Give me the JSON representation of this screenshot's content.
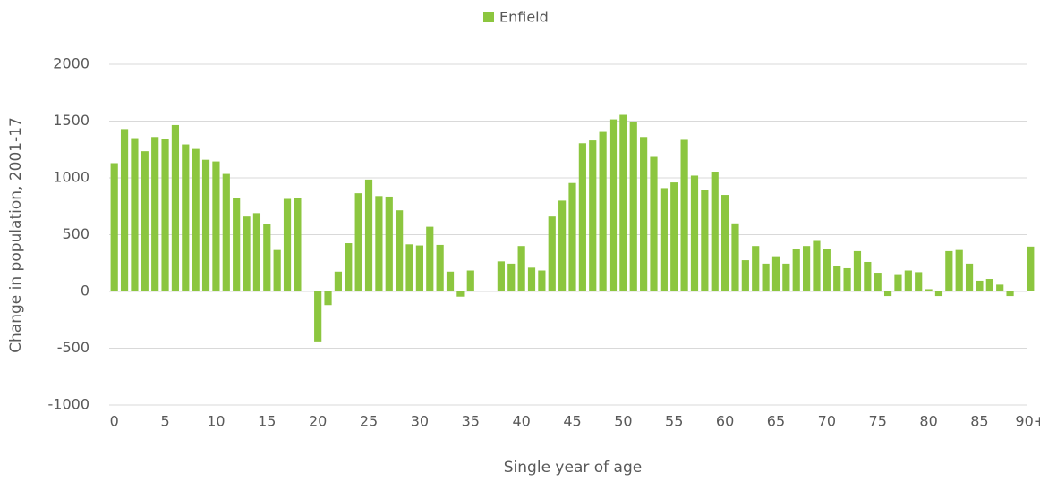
{
  "chart_data": {
    "type": "bar",
    "legend": "Enfield",
    "color": "#8cc63f",
    "x_label": "Single year of age",
    "y_label": "Change in population, 2001-17",
    "categories": [
      "0",
      null,
      null,
      null,
      null,
      "5",
      null,
      null,
      null,
      null,
      "10",
      null,
      null,
      null,
      null,
      "15",
      null,
      null,
      null,
      null,
      "20",
      null,
      null,
      null,
      null,
      "25",
      null,
      null,
      null,
      null,
      "30",
      null,
      null,
      null,
      null,
      "35",
      null,
      null,
      null,
      null,
      "40",
      null,
      null,
      null,
      null,
      "45",
      null,
      null,
      null,
      null,
      "50",
      null,
      null,
      null,
      null,
      "55",
      null,
      null,
      null,
      null,
      "60",
      null,
      null,
      null,
      null,
      "65",
      null,
      null,
      null,
      null,
      "70",
      null,
      null,
      null,
      null,
      "75",
      null,
      null,
      null,
      null,
      "80",
      null,
      null,
      null,
      null,
      "85",
      null,
      null,
      null,
      null,
      "90+"
    ],
    "values": [
      1130,
      1430,
      1350,
      1235,
      1360,
      1340,
      1465,
      1295,
      1255,
      1160,
      1145,
      1035,
      820,
      660,
      690,
      595,
      365,
      815,
      825,
      0,
      -440,
      -120,
      175,
      425,
      865,
      985,
      840,
      835,
      715,
      415,
      405,
      570,
      410,
      175,
      -45,
      185,
      0,
      0,
      265,
      245,
      400,
      210,
      185,
      660,
      800,
      955,
      1305,
      1330,
      1405,
      1515,
      1555,
      1495,
      1360,
      1185,
      910,
      960,
      1335,
      1020,
      890,
      1055,
      850,
      600,
      275,
      400,
      245,
      310,
      245,
      370,
      400,
      445,
      375,
      225,
      205,
      355,
      260,
      165,
      -40,
      145,
      185,
      170,
      20,
      -40,
      355,
      365,
      245,
      95,
      110,
      60,
      -40,
      0,
      395
    ],
    "ylim": [
      -1000,
      2000
    ],
    "yticks": [
      -1000,
      -500,
      0,
      500,
      1000,
      1500,
      2000
    ],
    "grid": true
  }
}
